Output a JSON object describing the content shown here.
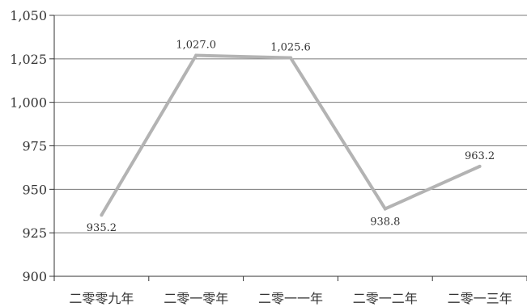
{
  "chart_data": {
    "type": "line",
    "categories": [
      "二零零九年",
      "二零一零年",
      "二零一一年",
      "二零一二年",
      "二零一三年"
    ],
    "series": [
      {
        "values": [
          935.2,
          1027.0,
          1025.6,
          938.8,
          963.2
        ],
        "color": "#b3b3b3"
      }
    ],
    "data_labels": [
      "935.2",
      "1,027.0",
      "1,025.6",
      "938.8",
      "963.2"
    ],
    "data_label_positions": [
      "below",
      "above",
      "above",
      "below",
      "above"
    ],
    "y_ticks": [
      900,
      925,
      950,
      975,
      1000,
      1025,
      1050
    ],
    "y_tick_labels": [
      "900",
      "925",
      "950",
      "975",
      "1,000",
      "1,025",
      "1,050"
    ],
    "ylim": [
      900,
      1050
    ],
    "grid": true,
    "legend": false,
    "colors": {
      "line": "#b3b3b3",
      "grid": "#7a7a7a",
      "axis": "#333333",
      "text": "#333333"
    }
  }
}
